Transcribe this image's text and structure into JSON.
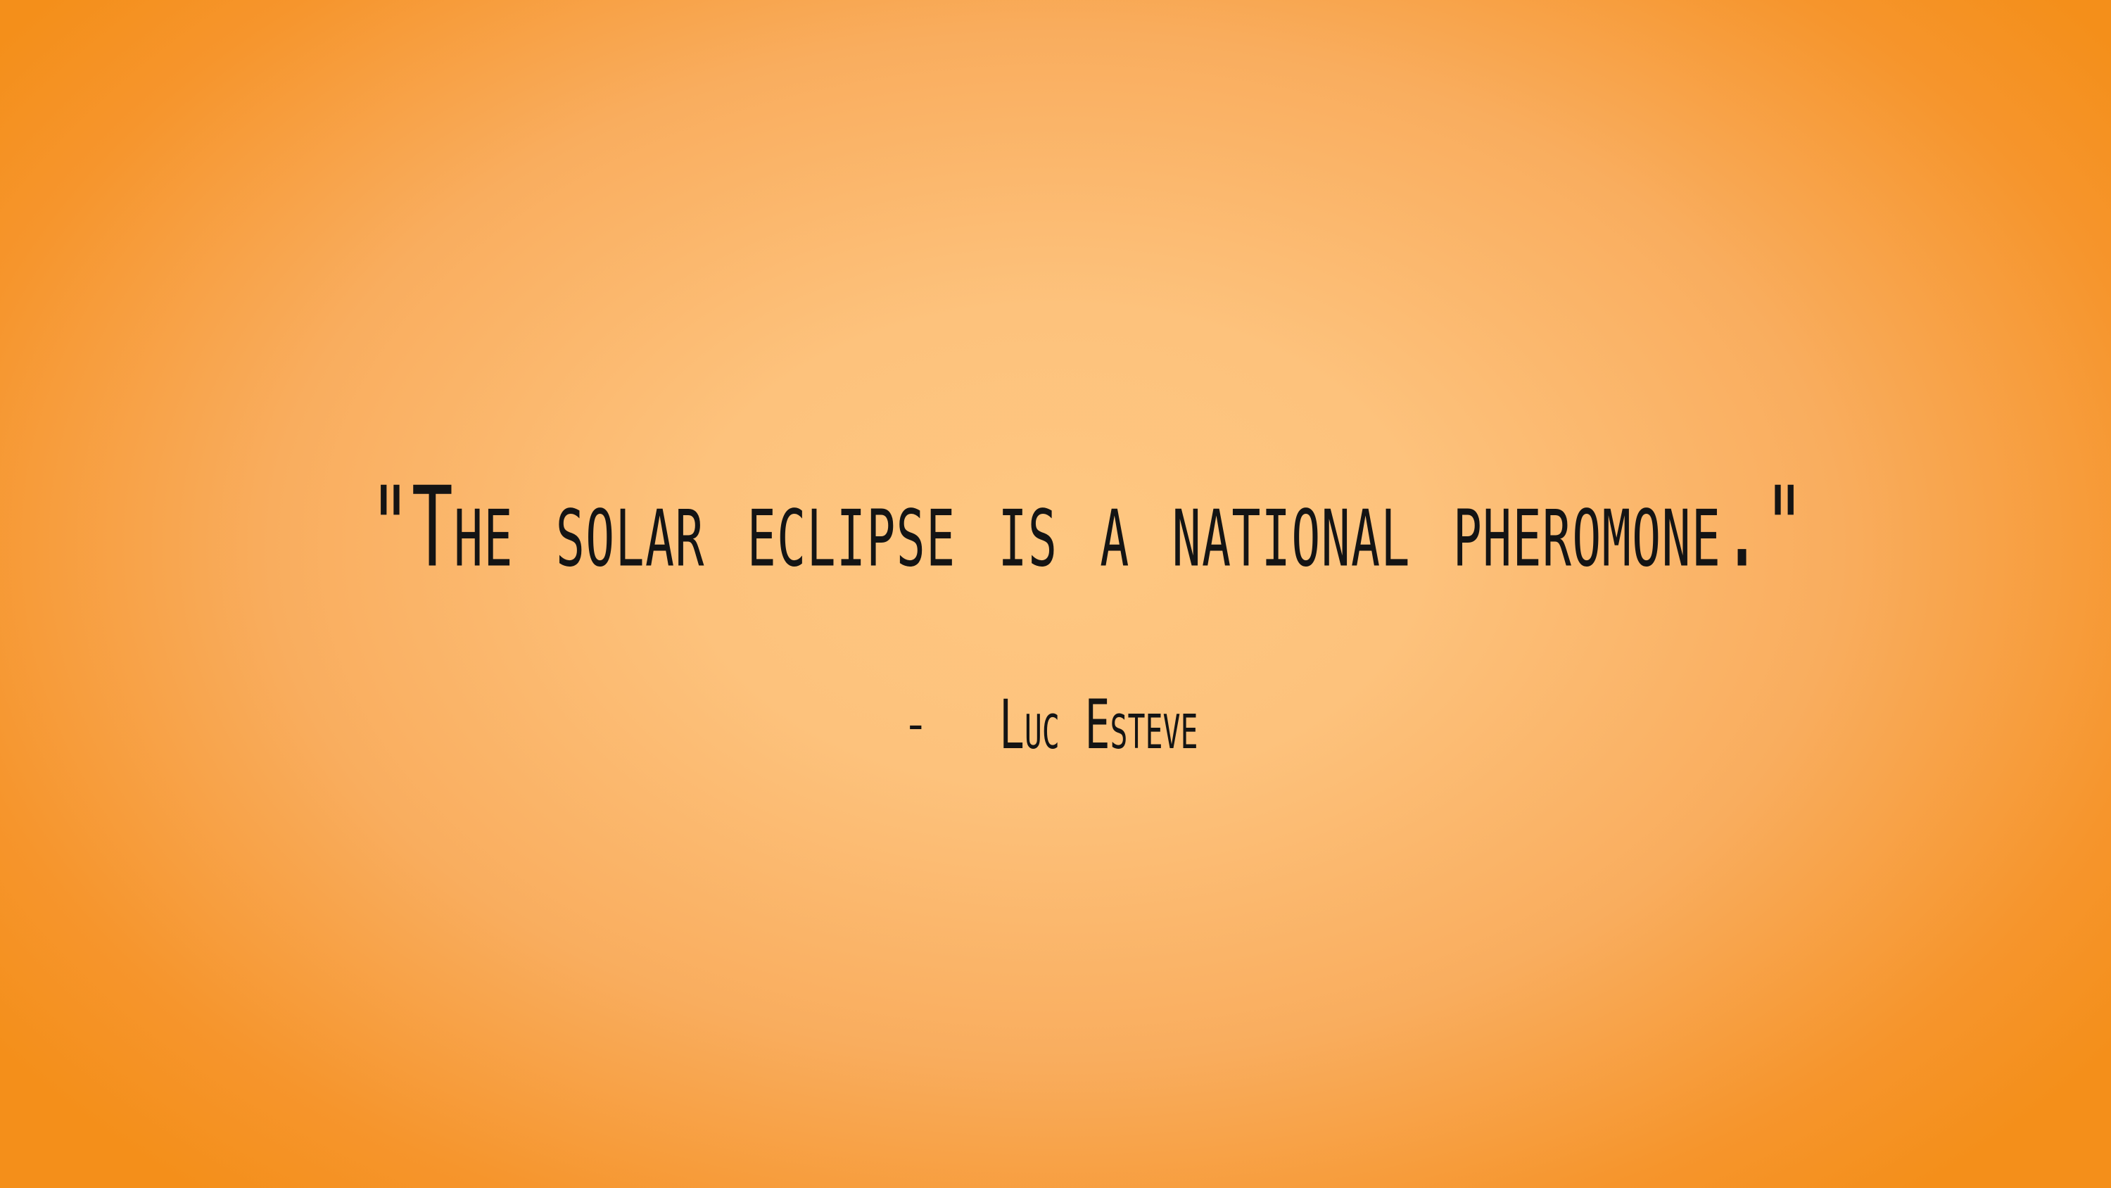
{
  "slide": {
    "quote": "\"The solar eclipse is a national pheromone.\"",
    "attribution_dash": "-",
    "attribution_name": "Luc Esteve"
  },
  "colors": {
    "background_center": "#fec781",
    "background_edge": "#f48f1a",
    "text": "#141414"
  }
}
